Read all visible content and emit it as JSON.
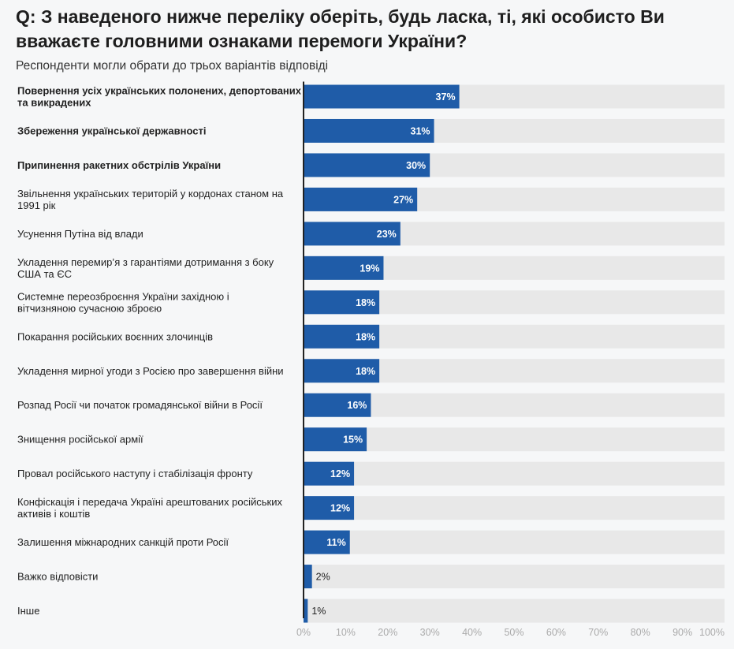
{
  "header": {
    "title": "Q: З наведеного нижче переліку оберіть, будь ласка, ті, які особисто Ви вважаєте головними ознаками перемоги України?",
    "subtitle": "Респонденти могли обрати до трьох варіантів відповіді"
  },
  "colors": {
    "bar": "#1f5ca8",
    "track": "#e8e8e8",
    "axis": "#222222",
    "tick": "#aaaaaa"
  },
  "chart_data": {
    "type": "bar",
    "orientation": "horizontal",
    "categories": [
      "Повернення усіх українських полонених, депортованих та викрадених",
      "Збереження української державності",
      "Припинення ракетних обстрілів України",
      "Звільнення українських територій у кордонах станом на 1991 рік",
      "Усунення Путіна від влади",
      "Укладення перемир’я з гарантіями дотримання з боку США та ЄС",
      "Системне переозброєння України західною і вітчизняною сучасною зброєю",
      "Покарання російських воєнних злочинців",
      "Укладення мирної угоди з Росією про завершення війни",
      "Розпад Росії чи початок громадянської війни в Росії",
      "Знищення російської армії",
      "Провал російського наступу і стабілізація фронту",
      "Конфіскація і передача Україні арештованих російських активів і коштів",
      "Залишення міжнародних санкцій проти Росії",
      "Важко відповісти",
      "Інше"
    ],
    "category_lines": [
      [
        "Повернення усіх українських полонених, депортованих",
        "та викрадених"
      ],
      [
        "Збереження української державності"
      ],
      [
        "Припинення ракетних обстрілів України"
      ],
      [
        "Звільнення українських територій у кордонах станом на",
        "1991 рік"
      ],
      [
        "Усунення Путіна від влади"
      ],
      [
        "Укладення перемир’я з гарантіями дотримання з боку",
        "США та ЄС"
      ],
      [
        "Системне переозброєння України західною і",
        "вітчизняною сучасною зброєю"
      ],
      [
        "Покарання російських воєнних злочинців"
      ],
      [
        "Укладення мирної угоди з Росією про завершення війни"
      ],
      [
        "Розпад Росії чи початок громадянської війни в Росії"
      ],
      [
        "Знищення російської армії"
      ],
      [
        "Провал російського наступу і стабілізація фронту"
      ],
      [
        "Конфіскація і передача Україні арештованих російських",
        "активів і коштів"
      ],
      [
        "Залишення міжнародних санкцій проти Росії"
      ],
      [
        "Важко відповісти"
      ],
      [
        "Інше"
      ]
    ],
    "bold_categories": [
      0,
      1,
      2
    ],
    "values": [
      37,
      31,
      30,
      27,
      23,
      19,
      18,
      18,
      18,
      16,
      15,
      12,
      12,
      11,
      2,
      1
    ],
    "value_labels": [
      "37%",
      "31%",
      "30%",
      "27%",
      "23%",
      "19%",
      "18%",
      "18%",
      "18%",
      "16%",
      "15%",
      "12%",
      "12%",
      "11%",
      "2%",
      "1%"
    ],
    "xlim": [
      0,
      100
    ],
    "x_ticks": [
      "0%",
      "10%",
      "20%",
      "30%",
      "40%",
      "50%",
      "60%",
      "70%",
      "80%",
      "90%",
      "100%"
    ],
    "grid": false,
    "legend": "none"
  }
}
